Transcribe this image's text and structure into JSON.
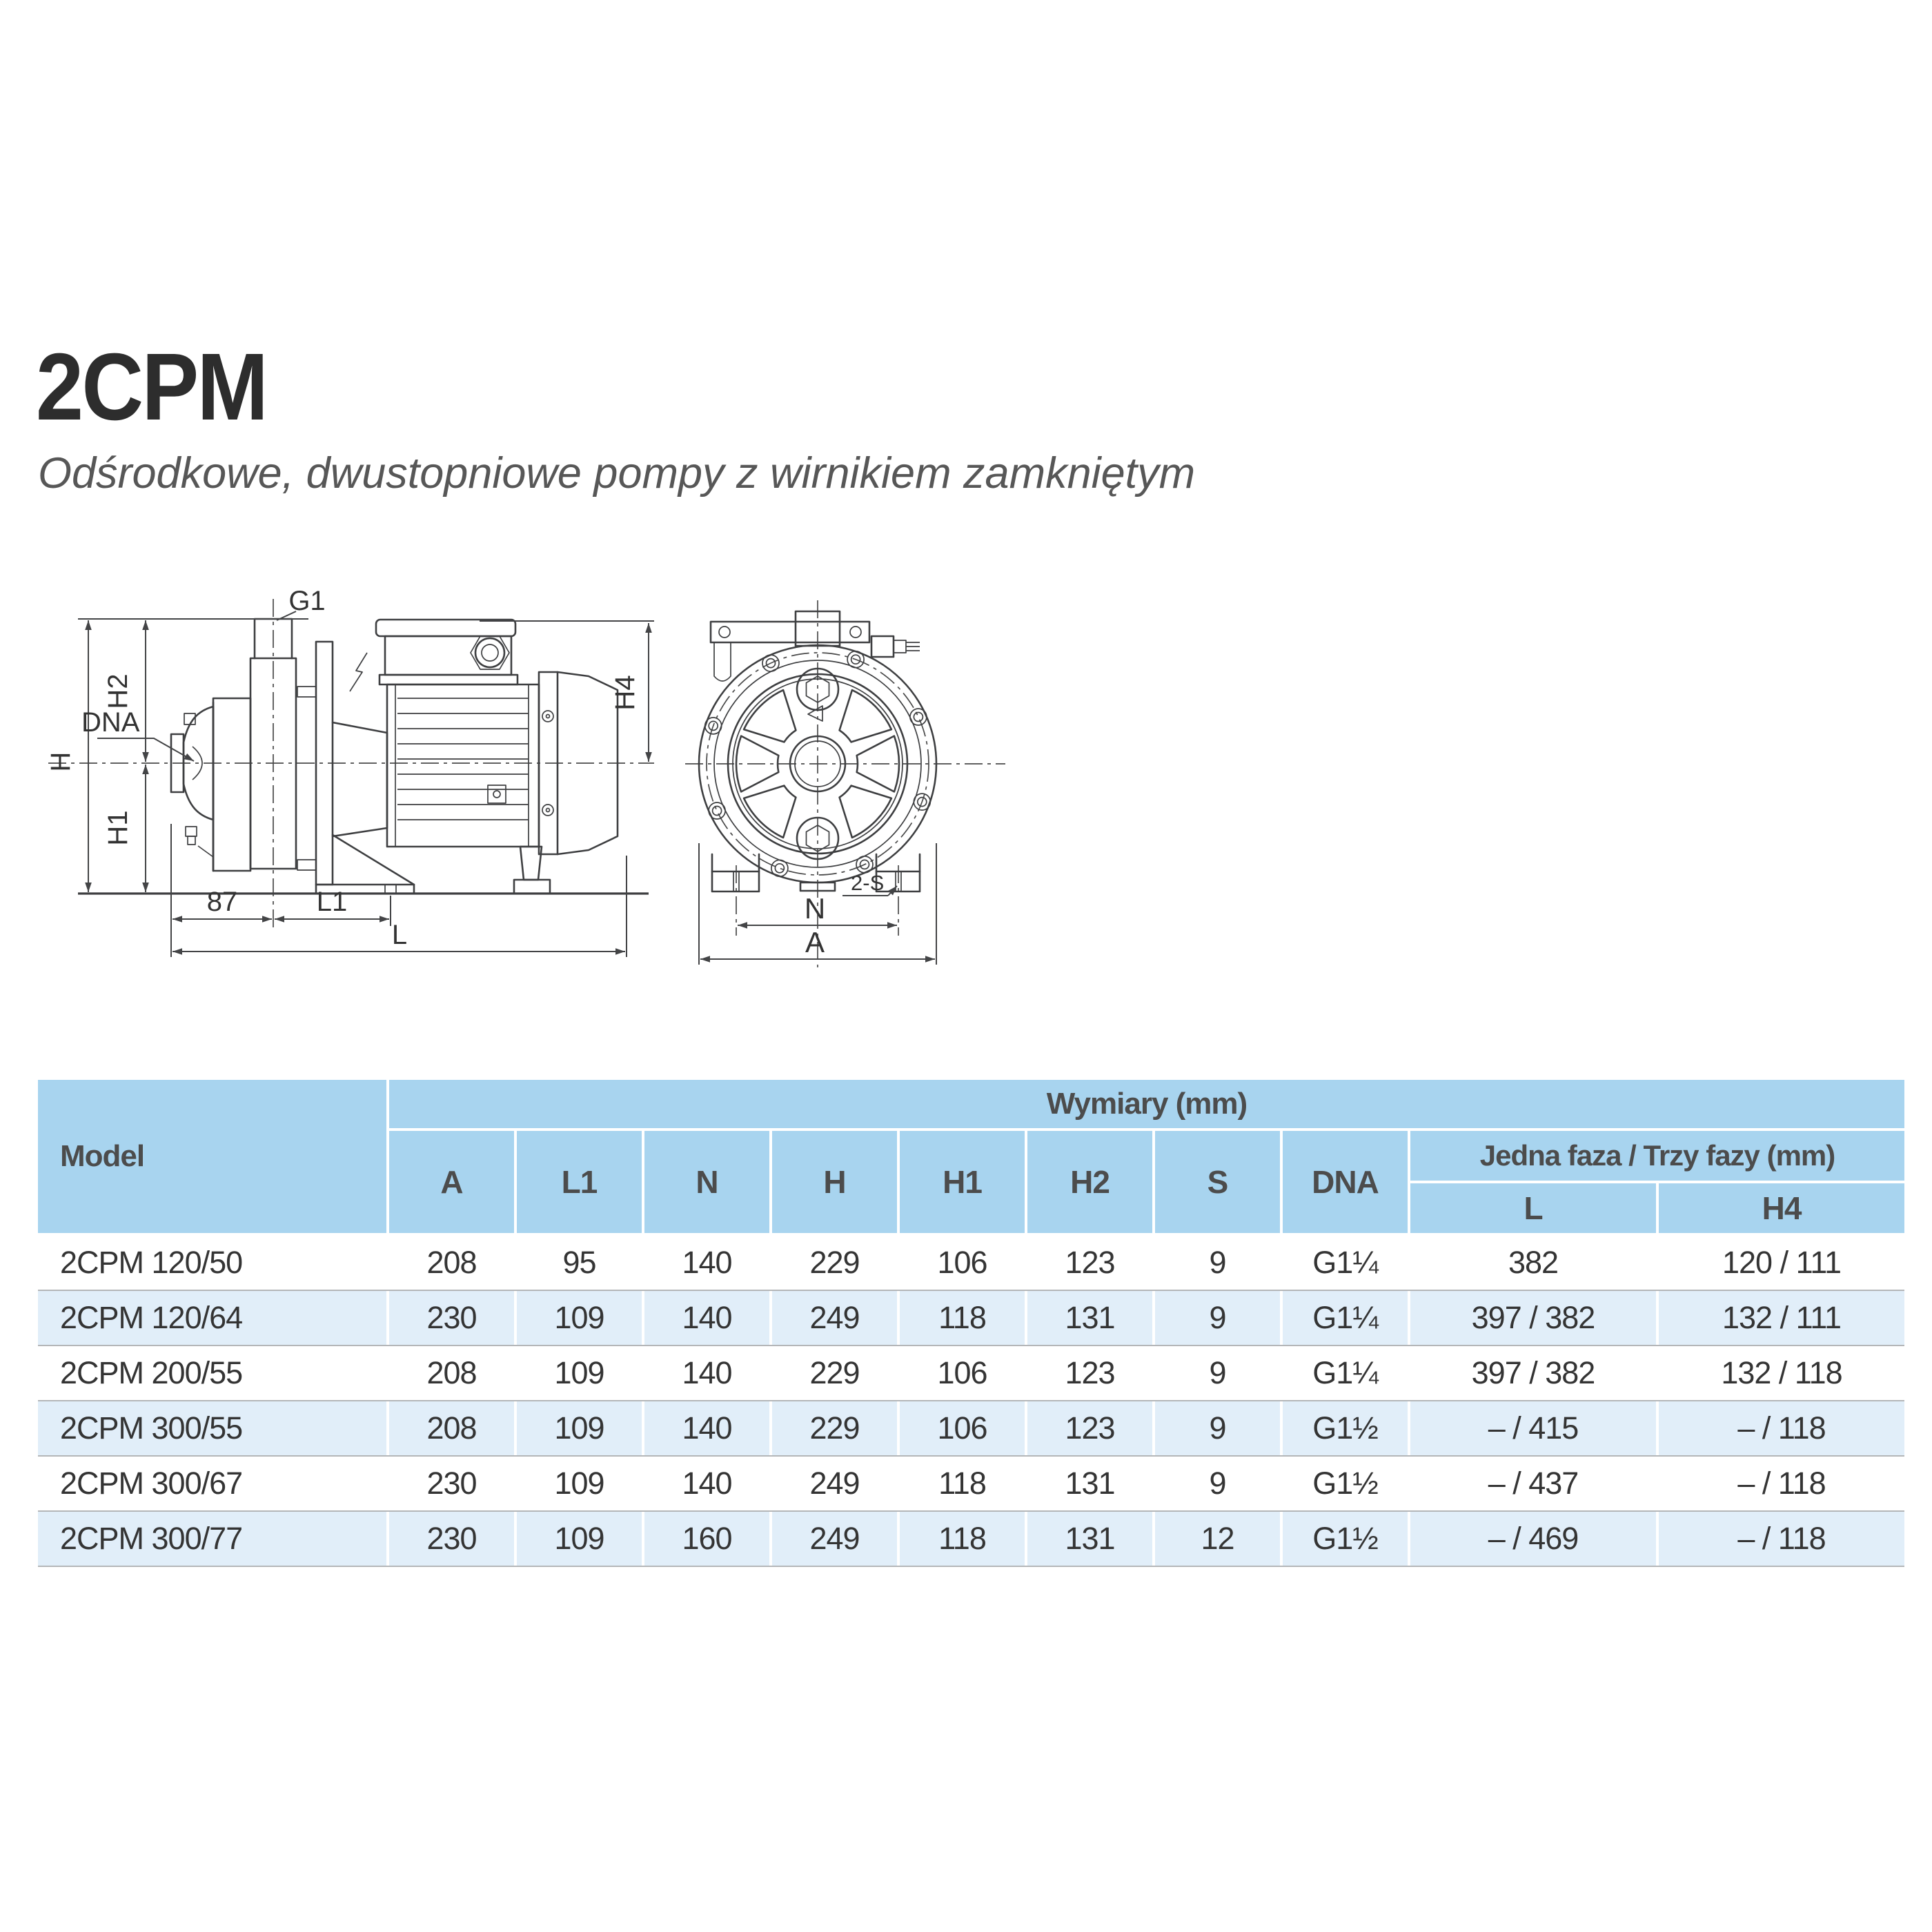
{
  "header": {
    "title": "2CPM",
    "subtitle": "Odśrodkowe, dwustopniowe pompy z wirnikiem zamkniętym"
  },
  "drawings": {
    "side_view": {
      "labels": {
        "g1": "G1",
        "h": "H",
        "h1": "H1",
        "h2": "H2",
        "h4": "H4",
        "dna": "DNA",
        "dim_87": "87",
        "l1": "L1",
        "l": "L"
      }
    },
    "front_view": {
      "labels": {
        "n": "N",
        "a": "A",
        "s": "2-S"
      }
    }
  },
  "table": {
    "model_header": "Model",
    "group_dimensions": "Wymiary (mm)",
    "group_phase": "Jedna faza / Trzy fazy (mm)",
    "dim_columns": [
      "A",
      "L1",
      "N",
      "H",
      "H1",
      "H2",
      "S",
      "DNA"
    ],
    "phase_columns": [
      "L",
      "H4"
    ],
    "rows": [
      {
        "model": "2CPM 120/50",
        "a": "208",
        "l1": "95",
        "n": "140",
        "h": "229",
        "h1": "106",
        "h2": "123",
        "s": "9",
        "dna": "G1¼",
        "l": "382",
        "h4": "120 / 111"
      },
      {
        "model": "2CPM 120/64",
        "a": "230",
        "l1": "109",
        "n": "140",
        "h": "249",
        "h1": "118",
        "h2": "131",
        "s": "9",
        "dna": "G1¼",
        "l": "397 / 382",
        "h4": "132 / 111"
      },
      {
        "model": "2CPM 200/55",
        "a": "208",
        "l1": "109",
        "n": "140",
        "h": "229",
        "h1": "106",
        "h2": "123",
        "s": "9",
        "dna": "G1¼",
        "l": "397 / 382",
        "h4": "132 / 118"
      },
      {
        "model": "2CPM 300/55",
        "a": "208",
        "l1": "109",
        "n": "140",
        "h": "229",
        "h1": "106",
        "h2": "123",
        "s": "9",
        "dna": "G1½",
        "l": "– / 415",
        "h4": "– / 118"
      },
      {
        "model": "2CPM 300/67",
        "a": "230",
        "l1": "109",
        "n": "140",
        "h": "249",
        "h1": "118",
        "h2": "131",
        "s": "9",
        "dna": "G1½",
        "l": "– / 437",
        "h4": "– / 118"
      },
      {
        "model": "2CPM 300/77",
        "a": "230",
        "l1": "109",
        "n": "160",
        "h": "249",
        "h1": "118",
        "h2": "131",
        "s": "12",
        "dna": "G1½",
        "l": "– / 469",
        "h4": "– / 118"
      }
    ]
  },
  "colors": {
    "header_blue": "#a8d4ef",
    "row_alt_blue": "#e1eef9",
    "row_separator": "#b4b6b8",
    "line_color": "#3e3f41",
    "text_dark": "#343434"
  }
}
